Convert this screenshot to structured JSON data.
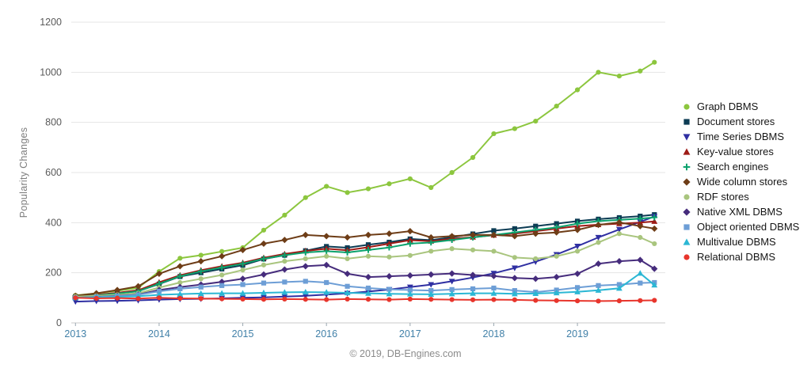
{
  "page": {
    "ylabel": "Popularity Changes",
    "footer": "© 2019, DB-Engines.com"
  },
  "chart_data": {
    "type": "line",
    "title": "",
    "xlabel": "",
    "ylabel": "Popularity Changes",
    "xlim": [
      2012.95,
      2020.05
    ],
    "ylim": [
      0,
      1200
    ],
    "y_ticks": [
      0,
      200,
      400,
      600,
      800,
      1000,
      1200
    ],
    "x_ticks": [
      2013,
      2014,
      2015,
      2016,
      2017,
      2018,
      2019
    ],
    "grid": "horizontal",
    "legend_position": "right",
    "x": [
      2013.0,
      2013.25,
      2013.5,
      2013.75,
      2014.0,
      2014.25,
      2014.5,
      2014.75,
      2015.0,
      2015.25,
      2015.5,
      2015.75,
      2016.0,
      2016.25,
      2016.5,
      2016.75,
      2017.0,
      2017.25,
      2017.5,
      2017.75,
      2018.0,
      2018.25,
      2018.5,
      2018.75,
      2019.0,
      2019.25,
      2019.5,
      2019.75,
      2019.92
    ],
    "series": [
      {
        "name": "Graph DBMS",
        "color": "#8CC63E",
        "marker": "circle",
        "values": [
          110,
          118,
          128,
          140,
          205,
          258,
          270,
          285,
          300,
          370,
          430,
          500,
          545,
          520,
          535,
          555,
          575,
          540,
          600,
          660,
          755,
          775,
          805,
          865,
          930,
          1000,
          985,
          1005,
          1040
        ]
      },
      {
        "name": "Document stores",
        "color": "#0C3C54",
        "marker": "square",
        "values": [
          105,
          110,
          118,
          127,
          155,
          185,
          200,
          215,
          230,
          255,
          270,
          288,
          305,
          300,
          312,
          322,
          335,
          330,
          342,
          355,
          368,
          376,
          386,
          396,
          406,
          414,
          420,
          426,
          432
        ]
      },
      {
        "name": "Time Series DBMS",
        "color": "#2F2FA2",
        "marker": "triangle-down",
        "values": [
          85,
          87,
          88,
          90,
          93,
          95,
          96,
          98,
          100,
          102,
          105,
          108,
          113,
          118,
          125,
          133,
          143,
          153,
          166,
          181,
          198,
          219,
          244,
          273,
          306,
          341,
          373,
          403,
          425
        ]
      },
      {
        "name": "Key-value stores",
        "color": "#9E1B16",
        "marker": "triangle-up",
        "values": [
          105,
          112,
          120,
          130,
          162,
          190,
          210,
          226,
          240,
          260,
          275,
          287,
          296,
          290,
          302,
          316,
          330,
          326,
          336,
          342,
          350,
          356,
          366,
          376,
          386,
          392,
          396,
          400,
          405
        ]
      },
      {
        "name": "Search engines",
        "color": "#0CA26E",
        "marker": "plus",
        "values": [
          105,
          110,
          117,
          126,
          156,
          186,
          206,
          221,
          236,
          256,
          270,
          281,
          286,
          281,
          291,
          301,
          316,
          321,
          331,
          341,
          351,
          361,
          371,
          381,
          396,
          406,
          411,
          416,
          421
        ]
      },
      {
        "name": "Wide column stores",
        "color": "#6E3D17",
        "marker": "diamond",
        "values": [
          108,
          118,
          131,
          146,
          196,
          226,
          246,
          266,
          291,
          316,
          331,
          351,
          346,
          341,
          351,
          356,
          366,
          341,
          346,
          351,
          351,
          346,
          356,
          361,
          371,
          391,
          401,
          386,
          376
        ]
      },
      {
        "name": "RDF stores",
        "color": "#A9C57E",
        "marker": "circle",
        "values": [
          105,
          108,
          112,
          118,
          141,
          161,
          176,
          191,
          211,
          231,
          246,
          256,
          266,
          256,
          266,
          263,
          269,
          286,
          296,
          291,
          286,
          261,
          256,
          266,
          286,
          321,
          356,
          341,
          316
        ]
      },
      {
        "name": "Native XML DBMS",
        "color": "#462C7C",
        "marker": "diamond",
        "values": [
          100,
          104,
          108,
          113,
          131,
          143,
          153,
          164,
          176,
          193,
          213,
          226,
          231,
          196,
          183,
          186,
          189,
          193,
          197,
          191,
          187,
          179,
          176,
          183,
          196,
          236,
          246,
          251,
          216
        ]
      },
      {
        "name": "Object oriented DBMS",
        "color": "#6D9ED6",
        "marker": "square",
        "values": [
          100,
          103,
          107,
          112,
          126,
          136,
          143,
          149,
          153,
          159,
          163,
          166,
          161,
          146,
          139,
          134,
          131,
          129,
          133,
          136,
          139,
          129,
          123,
          131,
          141,
          149,
          153,
          159,
          161
        ]
      },
      {
        "name": "Multivalue DBMS",
        "color": "#2BB7D4",
        "marker": "triangle-up",
        "values": [
          100,
          102,
          104,
          106,
          112,
          115,
          117,
          118,
          118,
          120,
          122,
          123,
          122,
          120,
          118,
          116,
          115,
          114,
          116,
          118,
          118,
          116,
          117,
          120,
          124,
          130,
          138,
          198,
          151
        ]
      },
      {
        "name": "Relational DBMS",
        "color": "#E8352C",
        "marker": "circle",
        "values": [
          100,
          98,
          99,
          97,
          100,
          98,
          97,
          96,
          95,
          94,
          95,
          94,
          93,
          95,
          94,
          93,
          95,
          94,
          93,
          92,
          93,
          92,
          90,
          89,
          88,
          87,
          88,
          89,
          90
        ]
      }
    ]
  }
}
